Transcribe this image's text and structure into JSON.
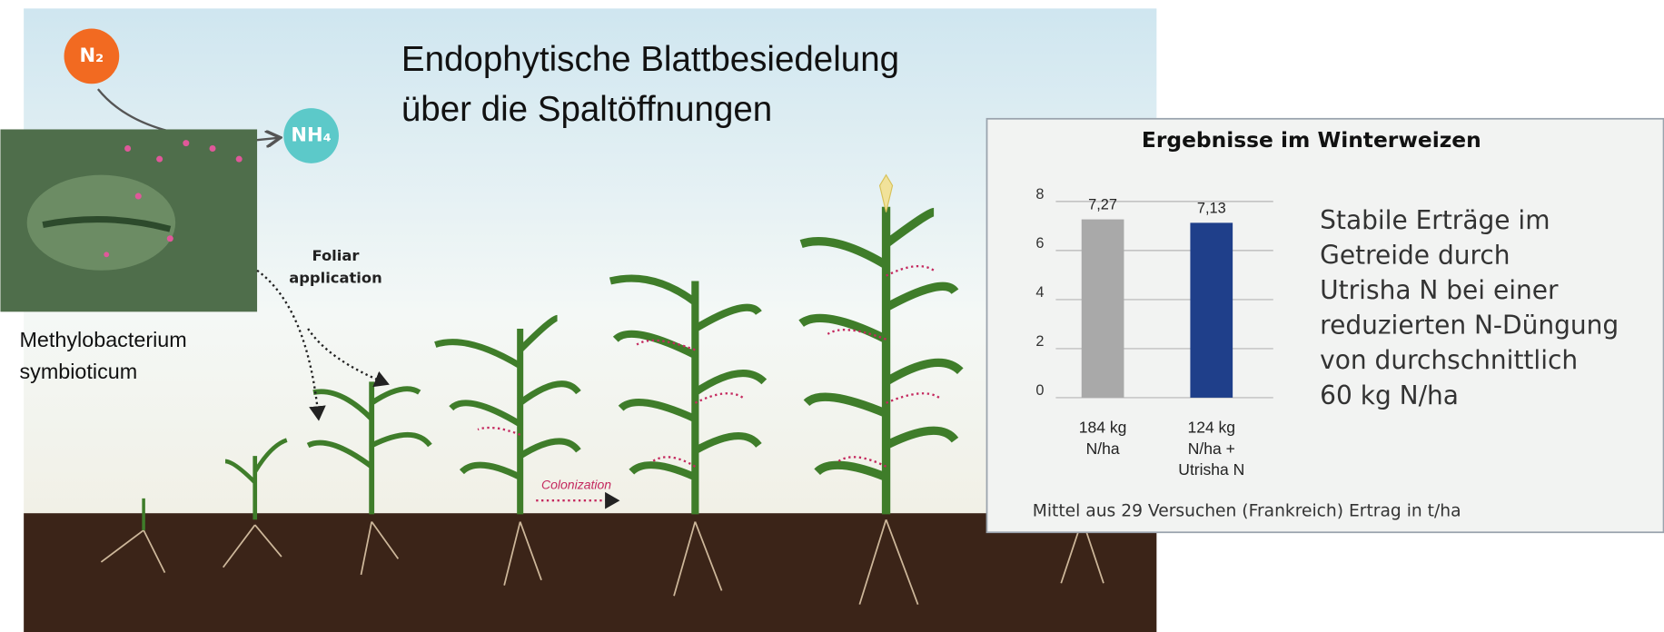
{
  "heading": [
    "Endophytische Blattbesiedelung",
    "über die Spaltöffnungen"
  ],
  "n2": "N₂",
  "nh4": "NH₄",
  "micrograph_caption": [
    "Methylobacterium",
    "symbioticum"
  ],
  "foliar": [
    "Foliar",
    "application"
  ],
  "colonization": "Colonization",
  "chart_data": {
    "type": "bar",
    "title": "Ergebnisse im Winterweizen",
    "categories": [
      [
        "184 kg",
        "N/ha"
      ],
      [
        "124 kg",
        "N/ha +",
        "Utrisha N"
      ]
    ],
    "values": [
      7.27,
      7.13
    ],
    "value_labels": [
      "7,27",
      "7,13"
    ],
    "colors": [
      "#a9a9a9",
      "#1f3f8a"
    ],
    "ylim": [
      0,
      8
    ],
    "yticks": [
      0,
      2,
      4,
      6,
      8
    ],
    "grid": true,
    "annotation": [
      "Stabile Erträge im",
      "Getreide durch",
      "Utrisha N bei einer",
      "reduzierten N-Düngung",
      "von durchschnittlich",
      "60 kg N/ha"
    ],
    "footnote": "Mittel aus 29 Versuchen (Frankreich) Ertrag in t/ha"
  }
}
